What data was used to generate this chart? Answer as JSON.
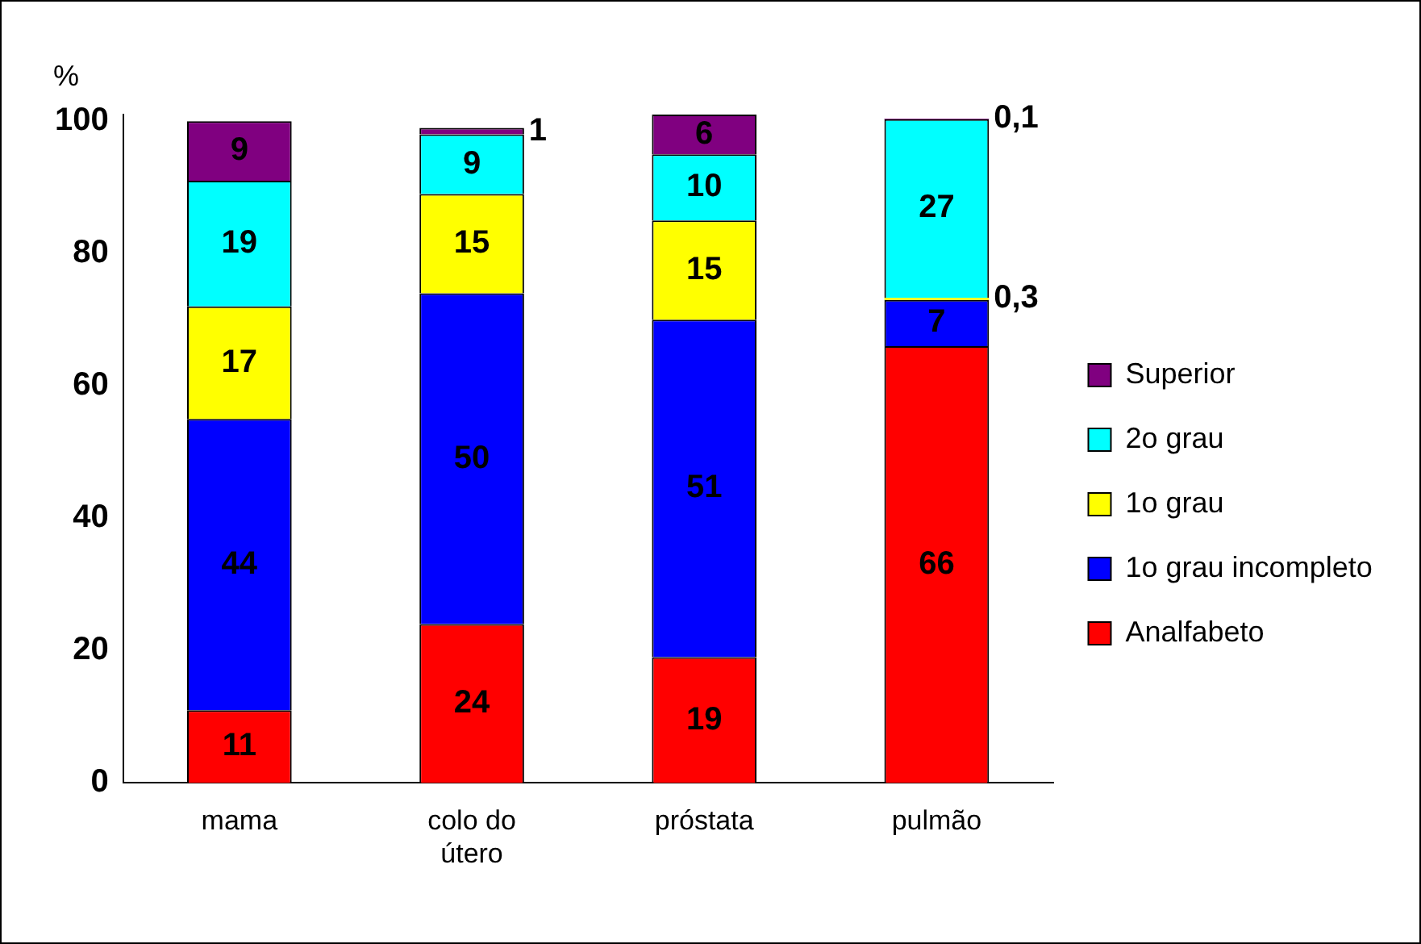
{
  "chart_data": {
    "type": "bar",
    "stacked": true,
    "ylabel": "%",
    "categories": [
      "mama",
      "colo do útero",
      "próstata",
      "pulmão"
    ],
    "ylim": [
      0,
      101
    ],
    "yticks": [
      0,
      20,
      40,
      60,
      80,
      100
    ],
    "grid": false,
    "legend": "right",
    "series": [
      {
        "name": "Analfabeto",
        "color": "#ff0000",
        "values": [
          11,
          24,
          19,
          66
        ],
        "value_labels": [
          "11",
          "24",
          "19",
          "66"
        ]
      },
      {
        "name": "1o grau incompleto",
        "color": "#0000ff",
        "values": [
          44,
          50,
          51,
          7
        ],
        "value_labels": [
          "44",
          "50",
          "51",
          "7"
        ]
      },
      {
        "name": "1o grau",
        "color": "#ffff00",
        "values": [
          17,
          15,
          15,
          0.3
        ],
        "value_labels": [
          "17",
          "15",
          "15",
          "0,3"
        ]
      },
      {
        "name": "2o grau",
        "color": "#00ffff",
        "values": [
          19,
          9,
          10,
          27
        ],
        "value_labels": [
          "19",
          "9",
          "10",
          "27"
        ]
      },
      {
        "name": "Superior",
        "color": "#800080",
        "values": [
          9,
          1,
          6,
          0.1
        ],
        "value_labels": [
          "9",
          "1",
          "6",
          "0,1"
        ]
      }
    ]
  }
}
